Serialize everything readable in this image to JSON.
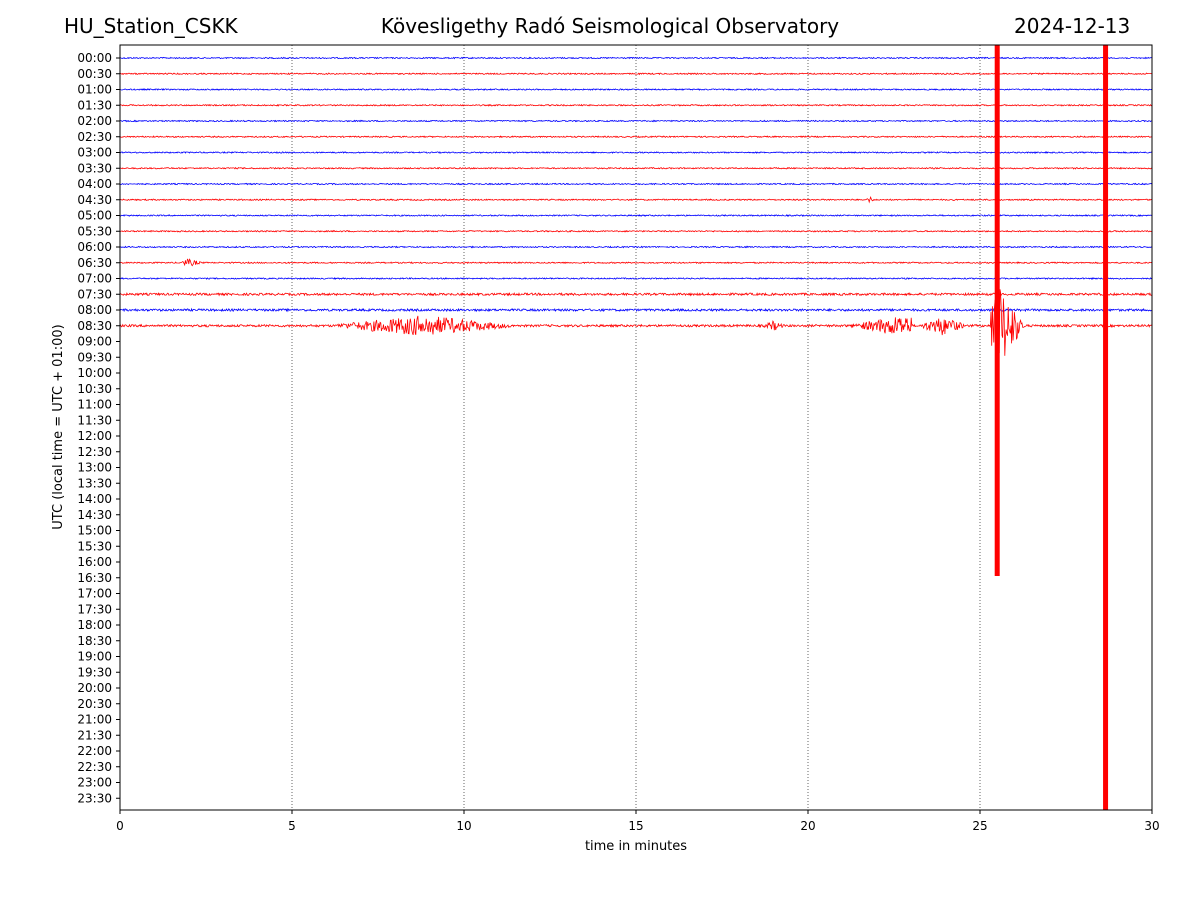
{
  "header": {
    "station": "HU_Station_CSKK",
    "observatory": "Kövesligethy Radó Seismological Observatory",
    "date": "2024-12-13"
  },
  "chart_data": {
    "type": "line",
    "title": "Kövesligethy Radó Seismological Observatory",
    "xlabel": "time in minutes",
    "ylabel": "UTC (local time = UTC + 01:00)",
    "xlim": [
      0,
      30
    ],
    "x_ticks": [
      0,
      5,
      10,
      15,
      20,
      25,
      30
    ],
    "vertical_grid": [
      5,
      10,
      15,
      20,
      25
    ],
    "row_labels": [
      "00:00",
      "00:30",
      "01:00",
      "01:30",
      "02:00",
      "02:30",
      "03:00",
      "03:30",
      "04:00",
      "04:30",
      "05:00",
      "05:30",
      "06:00",
      "06:30",
      "07:00",
      "07:30",
      "08:00",
      "08:30",
      "09:00",
      "09:30",
      "10:00",
      "10:30",
      "11:00",
      "11:30",
      "12:00",
      "12:30",
      "13:00",
      "13:30",
      "14:00",
      "14:30",
      "15:00",
      "15:30",
      "16:00",
      "16:30",
      "17:00",
      "17:30",
      "18:00",
      "18:30",
      "19:00",
      "19:30",
      "20:00",
      "20:30",
      "21:00",
      "21:30",
      "22:00",
      "22:30",
      "23:00",
      "23:30"
    ],
    "traces_recorded": 18,
    "trace_colors": [
      "#0000ff",
      "#ff0000"
    ],
    "events": [
      {
        "row": "08:30",
        "start_min": 6.3,
        "end_min": 11.5,
        "peak_min": 8.8,
        "amplitude": 0.6
      },
      {
        "row": "08:30",
        "start_min": 18.7,
        "end_min": 19.3,
        "peak_min": 19.0,
        "amplitude": 0.25
      },
      {
        "row": "08:30",
        "start_min": 21.2,
        "end_min": 23.0,
        "peak_min": 22.7,
        "amplitude": 0.6
      },
      {
        "row": "08:30",
        "start_min": 23.3,
        "end_min": 24.6,
        "peak_min": 23.9,
        "amplitude": 0.55
      },
      {
        "row": "08:30",
        "start_min": 25.3,
        "end_min": 26.3,
        "peak_min": 25.6,
        "amplitude": 2.5
      },
      {
        "row": "06:30",
        "start_min": 1.8,
        "end_min": 2.4,
        "peak_min": 2.0,
        "amplitude": 0.2
      },
      {
        "row": "04:30",
        "start_min": 21.7,
        "end_min": 21.9,
        "peak_min": 21.8,
        "amplitude": 0.2
      }
    ],
    "spikes": [
      {
        "minute": 25.5,
        "from_row": "00:00",
        "to_row": "16:00",
        "color": "#ff0000"
      },
      {
        "minute": 28.65,
        "from_row": "00:00",
        "to_row": "23:30",
        "color": "#ff0000"
      }
    ]
  }
}
